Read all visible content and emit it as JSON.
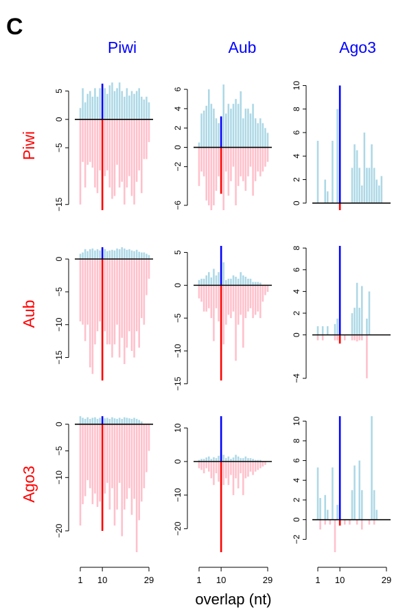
{
  "panel_letter": "C",
  "x_label": "overlap (nt)",
  "colors": {
    "positive_bar": "#add8e6",
    "negative_bar": "#ffc0cb",
    "highlight_positive": "#0000ff",
    "highlight_negative": "#ff0000",
    "column_label": "#0000ff",
    "row_label": "#ff0000",
    "axis": "#000000"
  },
  "chart_data": {
    "type": "bar",
    "layout": "3x3 grid of mirrored bar charts",
    "column_labels": [
      "Piwi",
      "Aub",
      "Ago3"
    ],
    "row_labels": [
      "Piwi",
      "Aub",
      "Ago3"
    ],
    "x": [
      1,
      2,
      3,
      4,
      5,
      6,
      7,
      8,
      9,
      10,
      11,
      12,
      13,
      14,
      15,
      16,
      17,
      18,
      19,
      20,
      21,
      22,
      23,
      24,
      25,
      26,
      27,
      28,
      29
    ],
    "highlight_x": 10,
    "x_ticks": [
      {
        "value": 1,
        "label": "1"
      },
      {
        "value": 10,
        "label": "10"
      },
      {
        "value": 29,
        "label": "29"
      }
    ],
    "panels": [
      {
        "row": "Piwi",
        "col": "Piwi",
        "ylim": [
          -16,
          7
        ],
        "yticks": [
          5,
          0,
          -5,
          -15
        ],
        "positive": [
          2,
          5.5,
          3,
          4.5,
          5,
          4,
          5.5,
          4,
          5.5,
          6.3,
          5.5,
          4.5,
          6,
          6.5,
          5,
          5.5,
          6.5,
          5,
          4,
          5.5,
          4.2,
          5,
          4.5,
          5,
          5.5,
          4,
          3.5,
          4,
          3
        ],
        "negative": [
          -15,
          -7.5,
          -12,
          -8,
          -7.5,
          -8.5,
          -12,
          -13,
          -9,
          -16,
          -10,
          -9,
          -12,
          -14,
          -13.5,
          -8,
          -12,
          -11,
          -15,
          -12,
          -10,
          -13.5,
          -15,
          -11,
          -9,
          -13,
          -7,
          -7,
          -4
        ]
      },
      {
        "row": "Piwi",
        "col": "Aub",
        "ylim": [
          -6.5,
          7
        ],
        "yticks": [
          6,
          4,
          2,
          0,
          -2,
          -6
        ],
        "positive": [
          0.5,
          3.5,
          3.8,
          4.3,
          6,
          4.5,
          4,
          3,
          2.5,
          3.2,
          6.5,
          3.5,
          4.5,
          4,
          4.5,
          5,
          4.5,
          5.8,
          3,
          4,
          4,
          3.5,
          4.5,
          3,
          2.5,
          3,
          2.5,
          2,
          1.5
        ],
        "negative": [
          -4,
          -2.5,
          -3,
          -5.5,
          -6,
          -6.5,
          -6,
          -4.5,
          -3,
          -4.8,
          -6.5,
          -2.5,
          -5,
          -3.5,
          -2,
          -6,
          -4,
          -3,
          -3.5,
          -4.5,
          -3,
          -2,
          -5,
          -3.5,
          -2.5,
          -3,
          -2.5,
          -2,
          -1.5
        ]
      },
      {
        "row": "Piwi",
        "col": "Ago3",
        "ylim": [
          -0.6,
          10.5
        ],
        "yticks": [
          10,
          8,
          6,
          4,
          2,
          0
        ],
        "positive": [
          5.3,
          0,
          0,
          2,
          1,
          0,
          5.3,
          0,
          8,
          10,
          0,
          0,
          0,
          0,
          3,
          5,
          4.5,
          3,
          1.5,
          6,
          3,
          3,
          5,
          3,
          2,
          1.5,
          2.3,
          0,
          0
        ],
        "negative": [
          0,
          0,
          0,
          0,
          0,
          0,
          0,
          0,
          0,
          -0.6,
          0,
          0,
          0,
          0,
          0,
          0,
          0,
          0,
          0,
          0,
          0,
          0,
          0,
          0,
          0,
          0,
          0,
          0,
          0
        ]
      },
      {
        "row": "Aub",
        "col": "Piwi",
        "ylim": [
          -18.5,
          2
        ],
        "yticks": [
          0,
          -5,
          -10,
          -15
        ],
        "positive": [
          0.8,
          1,
          1.5,
          1.2,
          1.5,
          1.6,
          1.3,
          1.5,
          1.3,
          1.8,
          1.5,
          1.2,
          1.3,
          1.4,
          1.3,
          1.6,
          1.5,
          1.8,
          1.6,
          1.4,
          1.5,
          1.3,
          1.2,
          1.4,
          1.1,
          1,
          1,
          0.8,
          0.6
        ],
        "negative": [
          -9.5,
          -10,
          -12.5,
          -10,
          -16.5,
          -17.5,
          -13,
          -11,
          -9.5,
          -18.5,
          -11,
          -13,
          -13,
          -15,
          -13,
          -10,
          -15,
          -12,
          -16,
          -13.5,
          -11,
          -14,
          -15,
          -11,
          -13.5,
          -9,
          -10,
          -5.5,
          -3
        ]
      },
      {
        "row": "Aub",
        "col": "Aub",
        "ylim": [
          -14.5,
          6
        ],
        "yticks": [
          5,
          0,
          -5,
          -10,
          -15
        ],
        "positive": [
          0.8,
          1,
          1,
          1.5,
          2,
          1.2,
          2.5,
          1.5,
          2,
          6,
          3.5,
          0.8,
          1,
          1,
          1.5,
          1.3,
          1,
          2,
          1.5,
          1.3,
          1,
          1,
          0.5,
          0.5,
          0.5,
          0.4,
          0,
          0,
          0
        ],
        "negative": [
          -2,
          -2.5,
          -4,
          -4,
          -3.5,
          -5,
          -8.5,
          -3.5,
          -5.5,
          -14.5,
          -9,
          -6,
          -4.5,
          -5,
          -4,
          -11.5,
          -6,
          -4.5,
          -9.5,
          -5,
          -4,
          -3.5,
          -5,
          -4.5,
          -4,
          -5,
          -2.5,
          -1.5,
          -1
        ]
      },
      {
        "row": "Aub",
        "col": "Ago3",
        "ylim": [
          -4.2,
          8.2
        ],
        "yticks": [
          8,
          6,
          4,
          2,
          0,
          -4
        ],
        "positive": [
          0.8,
          0,
          0.8,
          0,
          0.8,
          0,
          0,
          1,
          1.5,
          8.2,
          0,
          0,
          0,
          0,
          2,
          2.5,
          4.8,
          2.5,
          4.5,
          0,
          1.5,
          4,
          0,
          0,
          0,
          0,
          0,
          0,
          0
        ],
        "negative": [
          -0.5,
          0,
          -0.5,
          0,
          0,
          0,
          0,
          -0.5,
          -0.5,
          -0.8,
          0,
          -0.5,
          0,
          0,
          -0.5,
          -0.5,
          -0.6,
          -0.5,
          -0.5,
          0,
          -4,
          0,
          0,
          0,
          0,
          0,
          0,
          0,
          0
        ]
      },
      {
        "row": "Ago3",
        "col": "Piwi",
        "ylim": [
          -24,
          1.5
        ],
        "yticks": [
          0,
          -5,
          -10,
          -20
        ],
        "positive": [
          1.5,
          1.2,
          1,
          1.3,
          1,
          1.2,
          1.3,
          1,
          1.2,
          1.5,
          1.1,
          1.2,
          1,
          1.3,
          1.1,
          1,
          1.2,
          1,
          1.3,
          1.2,
          1.1,
          1,
          1.2,
          1,
          0.8,
          0.5,
          0,
          0,
          0
        ],
        "negative": [
          -19,
          -15,
          -13.5,
          -10.5,
          -12,
          -15,
          -13,
          -15.5,
          -14.5,
          -20,
          -13,
          -11,
          -16,
          -12,
          -19,
          -16,
          -11,
          -21,
          -16,
          -14,
          -12,
          -17,
          -14,
          -24,
          -18,
          -14.5,
          -12,
          -9,
          -5
        ]
      },
      {
        "row": "Ago3",
        "col": "Aub",
        "ylim": [
          -27,
          13.5
        ],
        "yticks": [
          10,
          0,
          -10,
          -20
        ],
        "positive": [
          0.5,
          0.8,
          0.8,
          1.2,
          1.5,
          0.8,
          1.3,
          1,
          1.7,
          13.5,
          2,
          1,
          1.5,
          0.8,
          1.2,
          2,
          1.5,
          1,
          1,
          1.5,
          1,
          1,
          0.8,
          0.5,
          0.5,
          0.5,
          0,
          0,
          0
        ],
        "negative": [
          -2,
          -2.5,
          -3.5,
          -2,
          -3,
          -5,
          -7,
          -3.5,
          -6,
          -27,
          -7,
          -5,
          -7,
          -4,
          -10,
          -5,
          -8,
          -3.5,
          -10,
          -5,
          -4.5,
          -3,
          -4,
          -3,
          -2.5,
          -2,
          -1.5,
          -1,
          0
        ]
      },
      {
        "row": "Ago3",
        "col": "Ago3",
        "ylim": [
          -3.3,
          10.5
        ],
        "yticks": [
          10,
          8,
          6,
          4,
          2,
          0,
          -2
        ],
        "positive": [
          5.3,
          2.2,
          0,
          2.5,
          1,
          0,
          5.3,
          0,
          1.5,
          10.5,
          0,
          0,
          0,
          0,
          3,
          5.5,
          0,
          6,
          3,
          0,
          0,
          0,
          10.5,
          3,
          1,
          0,
          0,
          0,
          0
        ],
        "negative": [
          0,
          -1,
          0,
          -0.5,
          0,
          -0.5,
          0,
          -3.3,
          0,
          -0.6,
          0,
          -0.5,
          0,
          -0.5,
          0,
          0,
          -0.5,
          0,
          -1,
          0,
          0,
          -0.5,
          0,
          -0.5,
          0,
          0,
          0,
          0,
          0
        ]
      }
    ]
  }
}
